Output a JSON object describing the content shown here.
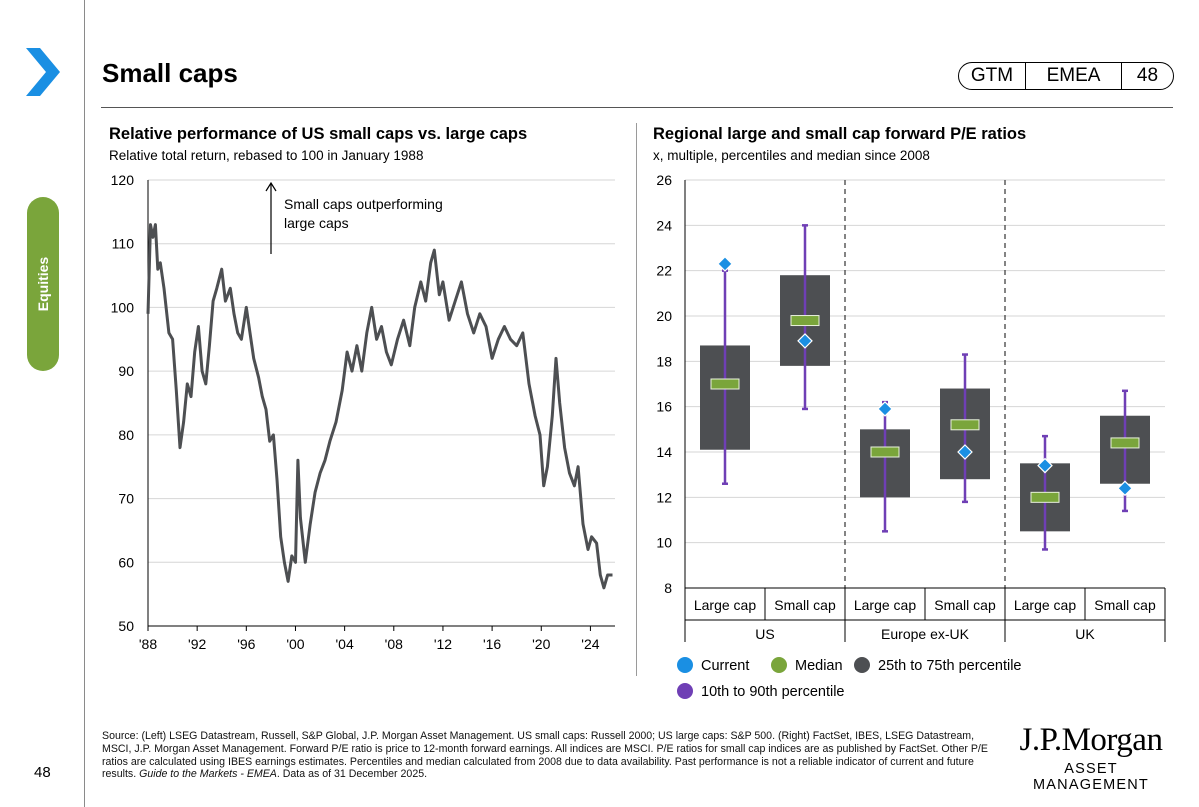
{
  "page": {
    "title": "Small caps",
    "tag_gtm": "GTM",
    "tag_region": "EMEA",
    "tag_page": "48",
    "side_tab": "Equities",
    "page_number": "48"
  },
  "colors": {
    "accent_green": "#7aa53b",
    "arrow_blue": "#1a8fe3",
    "line_gray": "#4d4f52",
    "box_gray": "#4d4f52",
    "current_blue": "#1a8fe3",
    "median_green": "#7aa53b",
    "whisker_purple": "#6f3fb5"
  },
  "chart_data": [
    {
      "type": "line",
      "title": "Relative performance of US small caps vs. large caps",
      "subtitle": "Relative total return, rebased to 100 in January 1988",
      "annotation_line1": "Small caps outperforming",
      "annotation_line2": "large caps",
      "ylim": [
        50,
        120
      ],
      "yticks": [
        50,
        60,
        70,
        80,
        90,
        100,
        110,
        120
      ],
      "xlim": [
        1988,
        2026
      ],
      "xticks": [
        1988,
        1992,
        1996,
        2000,
        2004,
        2008,
        2012,
        2016,
        2020,
        2024
      ],
      "xtick_labels": [
        "'88",
        "'92",
        "'96",
        "'00",
        "'04",
        "'08",
        "'12",
        "'16",
        "'20",
        "'24"
      ],
      "grid": "horizontal",
      "points": [
        [
          1988.0,
          99
        ],
        [
          1988.2,
          113
        ],
        [
          1988.4,
          111
        ],
        [
          1988.6,
          113
        ],
        [
          1988.8,
          106
        ],
        [
          1989.0,
          107
        ],
        [
          1989.3,
          103
        ],
        [
          1989.7,
          96
        ],
        [
          1990.0,
          95
        ],
        [
          1990.3,
          87
        ],
        [
          1990.6,
          78
        ],
        [
          1990.9,
          82
        ],
        [
          1991.2,
          88
        ],
        [
          1991.5,
          86
        ],
        [
          1991.8,
          93
        ],
        [
          1992.1,
          97
        ],
        [
          1992.4,
          90
        ],
        [
          1992.7,
          88
        ],
        [
          1993.0,
          94
        ],
        [
          1993.3,
          101
        ],
        [
          1993.6,
          103
        ],
        [
          1994.0,
          106
        ],
        [
          1994.3,
          101
        ],
        [
          1994.7,
          103
        ],
        [
          1995.0,
          99
        ],
        [
          1995.3,
          96
        ],
        [
          1995.6,
          95
        ],
        [
          1996.0,
          100
        ],
        [
          1996.3,
          96
        ],
        [
          1996.6,
          92
        ],
        [
          1997.0,
          89
        ],
        [
          1997.3,
          86
        ],
        [
          1997.6,
          84
        ],
        [
          1997.9,
          79
        ],
        [
          1998.2,
          80
        ],
        [
          1998.5,
          73
        ],
        [
          1998.8,
          64
        ],
        [
          1999.1,
          60
        ],
        [
          1999.4,
          57
        ],
        [
          1999.7,
          61
        ],
        [
          2000.0,
          60
        ],
        [
          2000.2,
          76
        ],
        [
          2000.4,
          67
        ],
        [
          2000.8,
          60
        ],
        [
          2001.2,
          66
        ],
        [
          2001.6,
          71
        ],
        [
          2002.0,
          74
        ],
        [
          2002.4,
          76
        ],
        [
          2002.8,
          79
        ],
        [
          2003.3,
          82
        ],
        [
          2003.8,
          87
        ],
        [
          2004.2,
          93
        ],
        [
          2004.6,
          90
        ],
        [
          2005.0,
          94
        ],
        [
          2005.4,
          90
        ],
        [
          2005.8,
          96
        ],
        [
          2006.2,
          100
        ],
        [
          2006.6,
          95
        ],
        [
          2007.0,
          97
        ],
        [
          2007.4,
          93
        ],
        [
          2007.8,
          91
        ],
        [
          2008.3,
          95
        ],
        [
          2008.8,
          98
        ],
        [
          2009.3,
          94
        ],
        [
          2009.7,
          100
        ],
        [
          2010.2,
          104
        ],
        [
          2010.6,
          101
        ],
        [
          2011.0,
          107
        ],
        [
          2011.3,
          109
        ],
        [
          2011.7,
          102
        ],
        [
          2012.0,
          104
        ],
        [
          2012.5,
          98
        ],
        [
          2013.0,
          101
        ],
        [
          2013.5,
          104
        ],
        [
          2014.0,
          99
        ],
        [
          2014.5,
          96
        ],
        [
          2015.0,
          99
        ],
        [
          2015.5,
          97
        ],
        [
          2016.0,
          92
        ],
        [
          2016.5,
          95
        ],
        [
          2017.0,
          97
        ],
        [
          2017.5,
          95
        ],
        [
          2018.0,
          94
        ],
        [
          2018.5,
          96
        ],
        [
          2019.0,
          88
        ],
        [
          2019.5,
          83
        ],
        [
          2019.9,
          80
        ],
        [
          2020.2,
          72
        ],
        [
          2020.5,
          75
        ],
        [
          2020.9,
          83
        ],
        [
          2021.2,
          92
        ],
        [
          2021.5,
          85
        ],
        [
          2021.9,
          78
        ],
        [
          2022.3,
          74
        ],
        [
          2022.7,
          72
        ],
        [
          2023.0,
          75
        ],
        [
          2023.4,
          66
        ],
        [
          2023.8,
          62
        ],
        [
          2024.1,
          64
        ],
        [
          2024.5,
          63
        ],
        [
          2024.8,
          58
        ],
        [
          2025.1,
          56
        ],
        [
          2025.4,
          58
        ],
        [
          2025.8,
          58
        ]
      ]
    },
    {
      "type": "box",
      "title": "Regional large and small cap forward P/E ratios",
      "subtitle": "x, multiple, percentiles and median since 2008",
      "ylim": [
        8,
        26
      ],
      "yticks": [
        8,
        10,
        12,
        14,
        16,
        18,
        20,
        22,
        24,
        26
      ],
      "groups": [
        "US",
        "Europe ex-UK",
        "UK"
      ],
      "categories": [
        "Large cap",
        "Small cap",
        "Large cap",
        "Small cap",
        "Large cap",
        "Small cap"
      ],
      "series": [
        {
          "group": "US",
          "category": "Large cap",
          "p10": 12.6,
          "p25": 14.1,
          "median": 17.0,
          "p75": 18.7,
          "p90": 22.0,
          "current": 22.3
        },
        {
          "group": "US",
          "category": "Small cap",
          "p10": 15.9,
          "p25": 17.8,
          "median": 19.8,
          "p75": 21.8,
          "p90": 24.0,
          "current": 18.9
        },
        {
          "group": "Europe ex-UK",
          "category": "Large cap",
          "p10": 10.5,
          "p25": 12.0,
          "median": 14.0,
          "p75": 15.0,
          "p90": 16.2,
          "current": 15.9
        },
        {
          "group": "Europe ex-UK",
          "category": "Small cap",
          "p10": 11.8,
          "p25": 12.8,
          "median": 15.2,
          "p75": 16.8,
          "p90": 18.3,
          "current": 14.0
        },
        {
          "group": "UK",
          "category": "Large cap",
          "p10": 9.7,
          "p25": 10.5,
          "median": 12.0,
          "p75": 13.5,
          "p90": 14.7,
          "current": 13.4
        },
        {
          "group": "UK",
          "category": "Small cap",
          "p10": 11.4,
          "p25": 12.6,
          "median": 14.4,
          "p75": 15.6,
          "p90": 16.7,
          "current": 12.4
        }
      ],
      "legend": [
        "Current",
        "Median",
        "25th to 75th percentile",
        "10th to 90th percentile"
      ]
    }
  ],
  "footer": {
    "source_main": "Source: (Left) LSEG Datastream, Russell, S&P Global, J.P. Morgan Asset Management. US small caps: Russell 2000; US large caps: S&P 500. (Right) FactSet, IBES, LSEG Datastream, MSCI, J.P. Morgan Asset Management. Forward P/E ratio is price to 12-month forward earnings. All indices are MSCI. P/E ratios for small cap indices are as published by FactSet. Other P/E ratios are calculated using IBES earnings estimates. Percentiles and median calculated from 2008 due to data availability. Past performance is not a reliable indicator of current and future results. ",
    "source_italic": "Guide to the Markets - EMEA",
    "source_end": ". Data as of 31 December 2025.",
    "brand_line1": "J.P.Morgan",
    "brand_line2": "ASSET MANAGEMENT"
  }
}
